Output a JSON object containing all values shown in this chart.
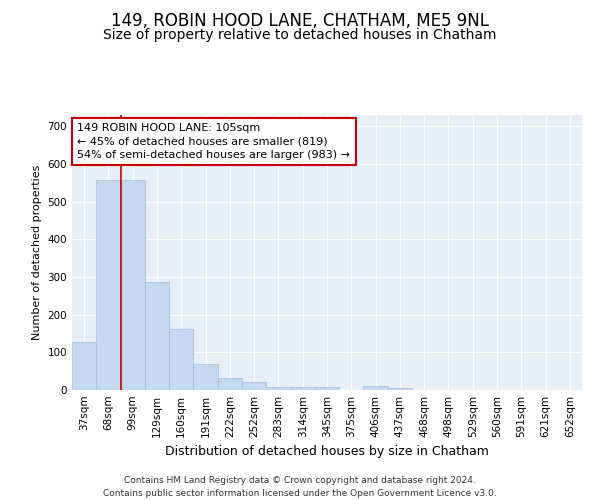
{
  "title": "149, ROBIN HOOD LANE, CHATHAM, ME5 9NL",
  "subtitle": "Size of property relative to detached houses in Chatham",
  "xlabel": "Distribution of detached houses by size in Chatham",
  "ylabel": "Number of detached properties",
  "categories": [
    "37sqm",
    "68sqm",
    "99sqm",
    "129sqm",
    "160sqm",
    "191sqm",
    "222sqm",
    "252sqm",
    "283sqm",
    "314sqm",
    "345sqm",
    "375sqm",
    "406sqm",
    "437sqm",
    "468sqm",
    "498sqm",
    "529sqm",
    "560sqm",
    "591sqm",
    "621sqm",
    "652sqm"
  ],
  "values": [
    127,
    557,
    557,
    286,
    163,
    70,
    33,
    20,
    8,
    8,
    8,
    0,
    10,
    5,
    0,
    0,
    0,
    0,
    0,
    0,
    0
  ],
  "bar_color": "#c5d8f0",
  "bar_edge_color": "#9bbedd",
  "vline_x_index": 1,
  "vline_color": "#cc0000",
  "annotation_text": "149 ROBIN HOOD LANE: 105sqm\n← 45% of detached houses are smaller (819)\n54% of semi-detached houses are larger (983) →",
  "annotation_box_color": "#ffffff",
  "annotation_box_edge": "#cc0000",
  "ylim": [
    0,
    730
  ],
  "yticks": [
    0,
    100,
    200,
    300,
    400,
    500,
    600,
    700
  ],
  "background_color": "#e8eef7",
  "grid_color": "#ffffff",
  "footer": "Contains HM Land Registry data © Crown copyright and database right 2024.\nContains public sector information licensed under the Open Government Licence v3.0.",
  "title_fontsize": 12,
  "subtitle_fontsize": 10,
  "xlabel_fontsize": 9,
  "ylabel_fontsize": 8,
  "tick_fontsize": 7.5,
  "annotation_fontsize": 8,
  "footer_fontsize": 6.5
}
